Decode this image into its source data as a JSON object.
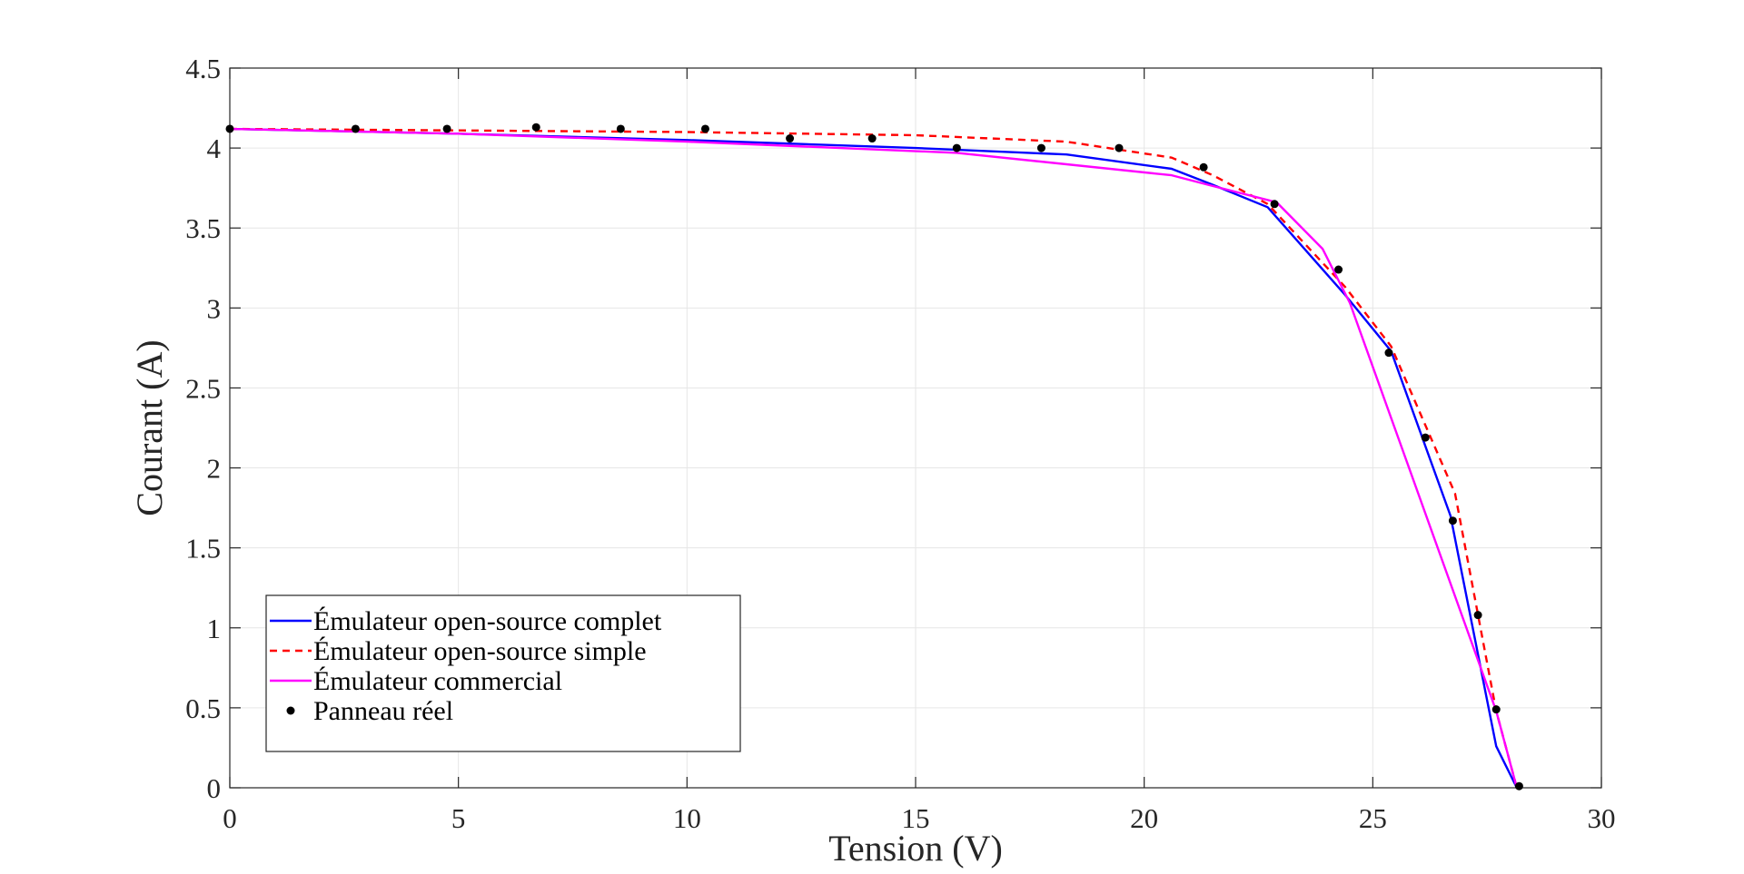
{
  "chart_data": {
    "type": "line",
    "title": "",
    "xlabel": "Tension (V)",
    "ylabel": "Courant (A)",
    "xlim": [
      0,
      30
    ],
    "ylim": [
      0,
      4.5
    ],
    "xticks": [
      0,
      5,
      10,
      15,
      20,
      25,
      30
    ],
    "xtick_labels": [
      "0",
      "5",
      "10",
      "15",
      "20",
      "25",
      "30"
    ],
    "yticks": [
      0,
      0.5,
      1,
      1.5,
      2,
      2.5,
      3,
      3.5,
      4,
      4.5
    ],
    "ytick_labels": [
      "0",
      "0.5",
      "1",
      "1.5",
      "2",
      "2.5",
      "3",
      "3.5",
      "4",
      "4.5"
    ],
    "grid": true,
    "legend_position": "bottom-left",
    "series": [
      {
        "name": "Émulateur open-source complet",
        "style": "solid",
        "color": "#0000ff",
        "x": [
          0,
          5,
          10,
          15,
          18.3,
          20.6,
          21.5,
          22.7,
          24.4,
          25.4,
          26.7,
          27.7,
          28.15
        ],
        "y": [
          4.12,
          4.09,
          4.05,
          4.0,
          3.96,
          3.87,
          3.77,
          3.63,
          3.08,
          2.73,
          1.7,
          0.26,
          0.0
        ]
      },
      {
        "name": "Émulateur open-source simple",
        "style": "dashed",
        "color": "#ff0000",
        "x": [
          0,
          5,
          10,
          15,
          18.3,
          20.6,
          21.5,
          22.7,
          24.4,
          25.4,
          26.8,
          27.7,
          28.15
        ],
        "y": [
          4.12,
          4.11,
          4.1,
          4.08,
          4.04,
          3.94,
          3.83,
          3.65,
          3.13,
          2.76,
          1.84,
          0.48,
          0.0
        ]
      },
      {
        "name": "Émulateur commercial",
        "style": "solid",
        "color": "#ff00ff",
        "x": [
          0,
          5,
          10,
          15.9,
          20.6,
          21.4,
          22.9,
          23.9,
          24.5,
          27.7,
          28.15
        ],
        "y": [
          4.12,
          4.09,
          4.04,
          3.97,
          3.83,
          3.77,
          3.66,
          3.37,
          3.03,
          0.48,
          0.0
        ]
      },
      {
        "name": "Panneau réel",
        "style": "markers",
        "color": "#000000",
        "x": [
          0,
          2.75,
          4.75,
          6.7,
          8.55,
          10.4,
          12.25,
          14.05,
          15.9,
          17.75,
          19.45,
          21.3,
          22.85,
          24.25,
          25.35,
          26.15,
          26.75,
          27.3,
          27.7,
          28.2
        ],
        "y": [
          4.12,
          4.12,
          4.12,
          4.13,
          4.12,
          4.12,
          4.06,
          4.06,
          4.0,
          4.0,
          4.0,
          3.88,
          3.65,
          3.24,
          2.72,
          2.19,
          1.67,
          1.08,
          0.49,
          0.01
        ]
      }
    ]
  }
}
